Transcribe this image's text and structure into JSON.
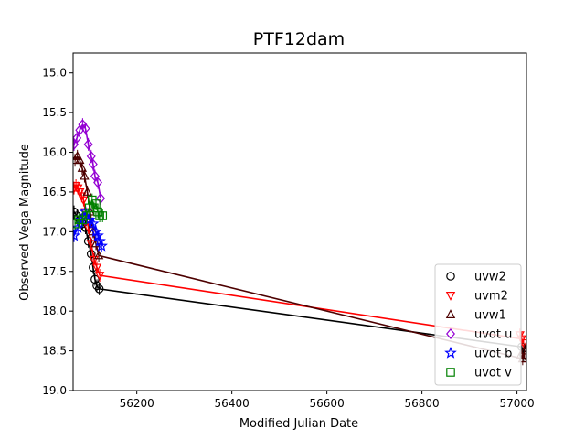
{
  "chart_data": {
    "type": "scatter",
    "title": "PTF12dam",
    "xlabel": "Modified Julian Date",
    "ylabel": "Observed Vega Magnitude",
    "xlim": [
      56066,
      57020
    ],
    "ylim": [
      19.0,
      14.75
    ],
    "y_inverted": true,
    "xticks": [
      56200,
      56400,
      56600,
      56800,
      57000
    ],
    "yticks": [
      15.0,
      15.5,
      16.0,
      16.5,
      17.0,
      17.5,
      18.0,
      18.5,
      19.0
    ],
    "grid": false,
    "legend_position": "lower-right",
    "series": [
      {
        "name": "uvw2",
        "color": "#000000",
        "marker": "circle",
        "x": [
          56068,
          56074,
          56080,
          56086,
          56092,
          56098,
          56104,
          56108,
          56112,
          56116,
          56121,
          57010,
          57014
        ],
        "y": [
          16.75,
          16.8,
          16.85,
          16.9,
          16.95,
          17.12,
          17.28,
          17.45,
          17.6,
          17.68,
          17.72,
          18.45,
          18.55
        ],
        "connect": [
          [
            56121,
            17.72
          ],
          [
            57010,
            18.45
          ]
        ]
      },
      {
        "name": "uvm2",
        "color": "#ff0000",
        "marker": "triangle-down",
        "x": [
          56068,
          56072,
          56076,
          56080,
          56084,
          56088,
          56092,
          56098,
          56104,
          56110,
          56116,
          56122,
          57006,
          57010,
          57014
        ],
        "y": [
          16.45,
          16.42,
          16.45,
          16.5,
          16.55,
          16.6,
          16.75,
          16.95,
          17.15,
          17.35,
          17.45,
          17.55,
          18.3,
          18.35,
          18.4
        ],
        "connect": [
          [
            56122,
            17.55
          ],
          [
            57010,
            18.35
          ]
        ]
      },
      {
        "name": "uvw1",
        "color": "#4d0000",
        "marker": "triangle-up",
        "x": [
          56070,
          56075,
          56080,
          56085,
          56090,
          56096,
          56102,
          56108,
          56114,
          56120,
          57008,
          57012,
          57016
        ],
        "y": [
          16.1,
          16.05,
          16.1,
          16.2,
          16.3,
          16.5,
          16.75,
          17.0,
          17.15,
          17.3,
          18.55,
          18.6,
          18.5
        ],
        "connect": [
          [
            56120,
            17.3
          ],
          [
            57012,
            18.6
          ]
        ]
      },
      {
        "name": "uvot u",
        "color": "#9400d3",
        "marker": "diamond",
        "x": [
          56068,
          56074,
          56080,
          56086,
          56092,
          56098,
          56104,
          56108,
          56112,
          56118,
          56124
        ],
        "y": [
          15.9,
          15.82,
          15.72,
          15.65,
          15.7,
          15.9,
          16.05,
          16.15,
          16.3,
          16.38,
          16.58
        ]
      },
      {
        "name": "uvot b",
        "color": "#0000ff",
        "marker": "star",
        "x": [
          56068,
          56076,
          56084,
          56092,
          56100,
          56108,
          56114,
          56118,
          56122,
          56126
        ],
        "y": [
          17.05,
          16.95,
          16.85,
          16.75,
          16.85,
          16.9,
          17.0,
          17.05,
          17.12,
          17.18
        ]
      },
      {
        "name": "uvot v",
        "color": "#008000",
        "marker": "square",
        "x": [
          56070,
          56078,
          56086,
          56094,
          56100,
          56106,
          56110,
          56114,
          56118,
          56122,
          56128
        ],
        "y": [
          16.9,
          16.85,
          16.85,
          16.8,
          16.7,
          16.6,
          16.7,
          16.65,
          16.75,
          16.8,
          16.8
        ]
      }
    ]
  }
}
